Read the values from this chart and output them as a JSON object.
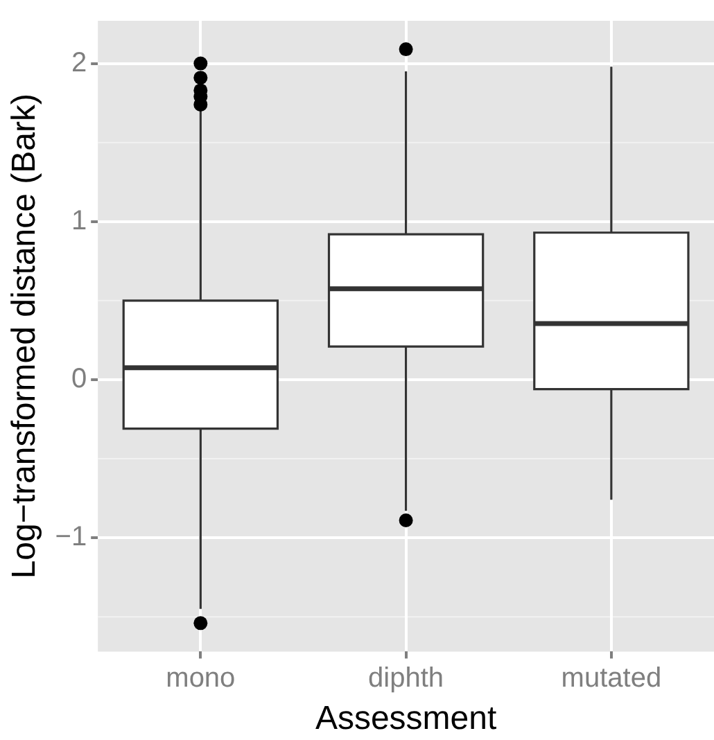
{
  "chart_data": {
    "type": "box",
    "xlabel": "Assessment",
    "ylabel": "Log−transformed distance (Bark)",
    "categories": [
      "mono",
      "diphth",
      "mutated"
    ],
    "boxes": [
      {
        "low": -1.45,
        "q1": -0.31,
        "median": 0.075,
        "q3": 0.5,
        "high": 1.71,
        "outliers": [
          2.0,
          1.91,
          1.83,
          1.79,
          1.74,
          -1.54
        ]
      },
      {
        "low": -0.83,
        "q1": 0.21,
        "median": 0.575,
        "q3": 0.92,
        "high": 1.95,
        "outliers": [
          2.09,
          -0.89
        ]
      },
      {
        "low": -0.76,
        "q1": -0.06,
        "median": 0.355,
        "q3": 0.93,
        "high": 1.98
      }
    ],
    "ylim": [
      -1.72,
      2.27
    ],
    "yticks": [
      -1,
      0,
      1,
      2
    ],
    "grid": true
  }
}
